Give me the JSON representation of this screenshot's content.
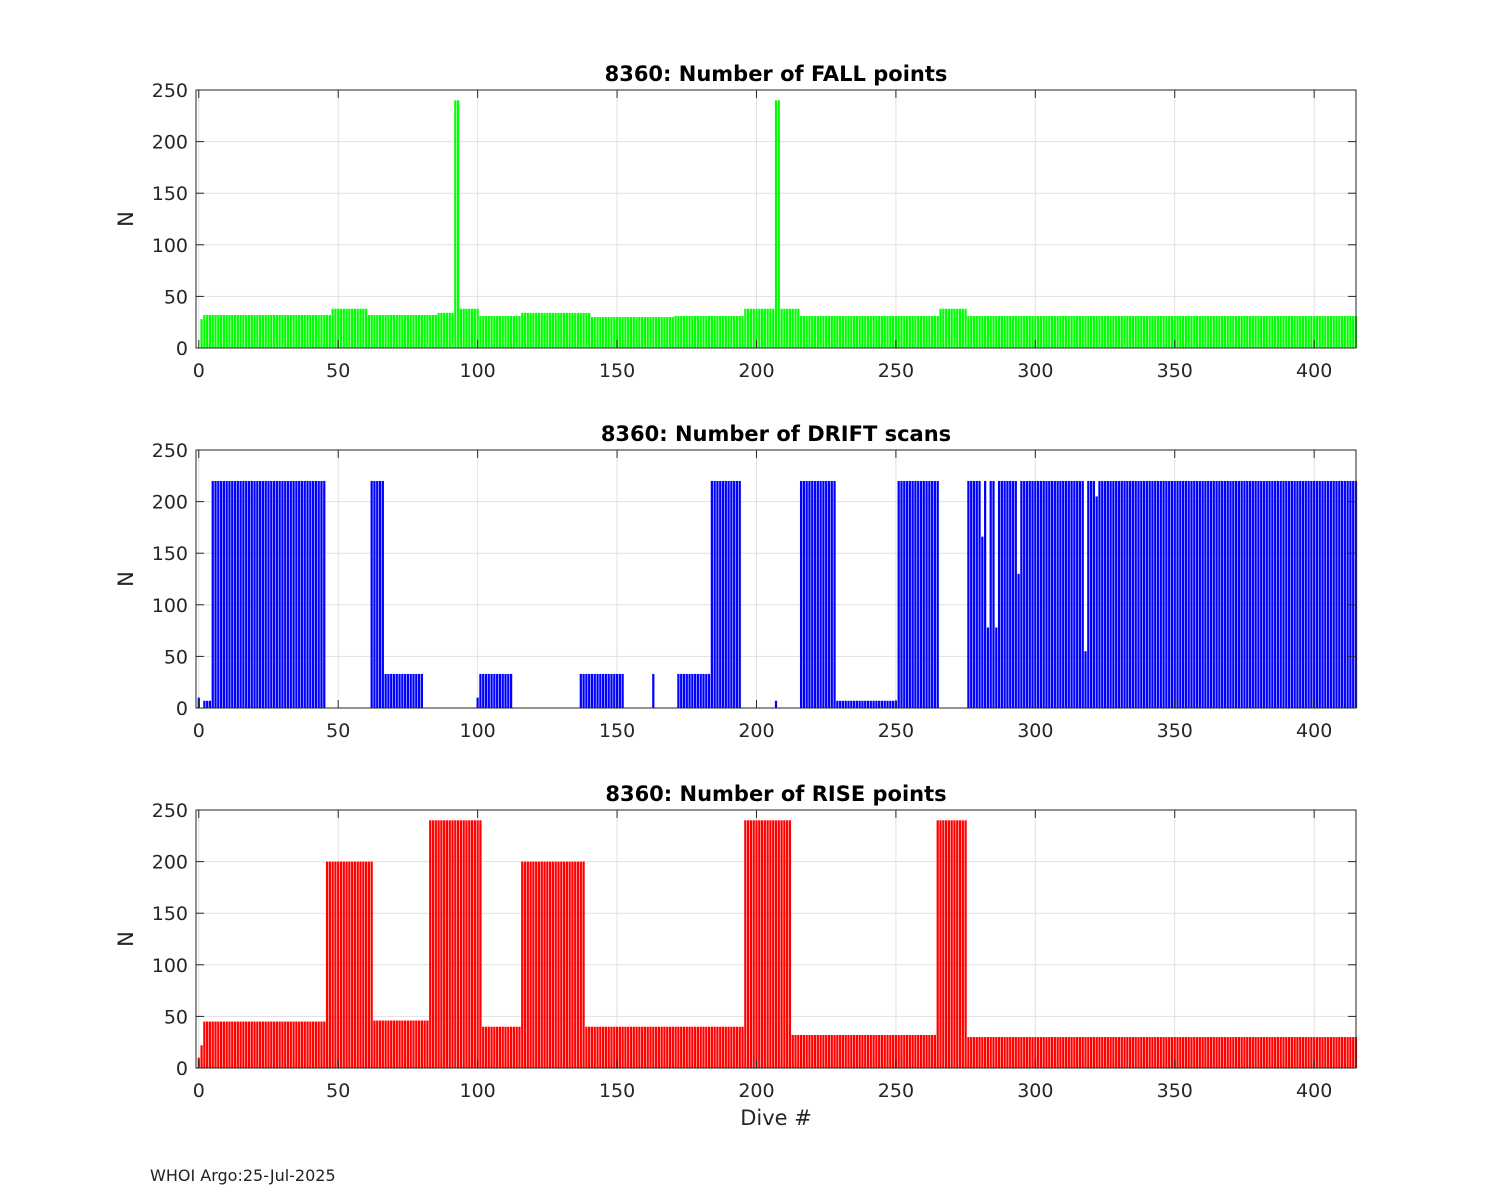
{
  "footer": "WHOI Argo:25-Jul-2025",
  "chart_data": [
    {
      "type": "bar",
      "title": "8360: Number of FALL points",
      "xlabel": "",
      "ylabel": "N",
      "xlim": [
        -1,
        415
      ],
      "ylim": [
        0,
        250
      ],
      "xticks": [
        0,
        50,
        100,
        150,
        200,
        250,
        300,
        350,
        400
      ],
      "yticks": [
        0,
        50,
        100,
        150,
        200,
        250
      ],
      "grid": true,
      "color": "#00ff00",
      "series_name": "FALL points",
      "spikes": [
        [
          92,
          240
        ],
        [
          93,
          240
        ],
        [
          207,
          240
        ],
        [
          208,
          240
        ]
      ],
      "ranges": [
        [
          1,
          1,
          28
        ],
        [
          2,
          47,
          32
        ],
        [
          48,
          60,
          38
        ],
        [
          61,
          85,
          32
        ],
        [
          86,
          91,
          34
        ],
        [
          94,
          100,
          38
        ],
        [
          101,
          115,
          31
        ],
        [
          116,
          140,
          34
        ],
        [
          141,
          170,
          30
        ],
        [
          171,
          195,
          31
        ],
        [
          196,
          206,
          38
        ],
        [
          209,
          215,
          38
        ],
        [
          216,
          265,
          31
        ],
        [
          266,
          275,
          38
        ],
        [
          276,
          415,
          31
        ]
      ]
    },
    {
      "type": "bar",
      "title": "8360: Number of DRIFT scans",
      "xlabel": "",
      "ylabel": "N",
      "xlim": [
        -1,
        415
      ],
      "ylim": [
        0,
        250
      ],
      "xticks": [
        0,
        50,
        100,
        150,
        200,
        250,
        300,
        350,
        400
      ],
      "yticks": [
        0,
        50,
        100,
        150,
        200,
        250
      ],
      "grid": true,
      "color": "#0000ff",
      "series_name": "DRIFT scans",
      "ranges": [
        [
          0,
          0,
          10
        ],
        [
          2,
          4,
          7
        ],
        [
          5,
          45,
          220
        ],
        [
          62,
          66,
          220
        ],
        [
          67,
          80,
          33
        ],
        [
          100,
          100,
          10
        ],
        [
          101,
          112,
          33
        ],
        [
          137,
          152,
          33
        ],
        [
          163,
          163,
          33
        ],
        [
          172,
          183,
          33
        ],
        [
          184,
          194,
          220
        ],
        [
          207,
          207,
          7
        ],
        [
          216,
          228,
          220
        ],
        [
          229,
          250,
          7
        ],
        [
          251,
          265,
          220
        ],
        [
          276,
          415,
          220
        ]
      ],
      "overrides": [
        [
          281,
          166
        ],
        [
          283,
          78
        ],
        [
          286,
          78
        ],
        [
          294,
          130
        ],
        [
          318,
          55
        ],
        [
          322,
          205
        ]
      ]
    },
    {
      "type": "bar",
      "title": "8360: Number of RISE points",
      "xlabel": "Dive #",
      "ylabel": "N",
      "xlim": [
        -1,
        415
      ],
      "ylim": [
        0,
        250
      ],
      "xticks": [
        0,
        50,
        100,
        150,
        200,
        250,
        300,
        350,
        400
      ],
      "yticks": [
        0,
        50,
        100,
        150,
        200,
        250
      ],
      "grid": true,
      "color": "#ff0000",
      "series_name": "RISE points",
      "ranges": [
        [
          0,
          0,
          10
        ],
        [
          1,
          1,
          22
        ],
        [
          2,
          45,
          45
        ],
        [
          46,
          62,
          200
        ],
        [
          63,
          82,
          46
        ],
        [
          83,
          101,
          240
        ],
        [
          102,
          115,
          40
        ],
        [
          116,
          138,
          200
        ],
        [
          139,
          195,
          40
        ],
        [
          196,
          212,
          240
        ],
        [
          213,
          264,
          32
        ],
        [
          265,
          275,
          240
        ],
        [
          276,
          415,
          30
        ]
      ]
    }
  ]
}
